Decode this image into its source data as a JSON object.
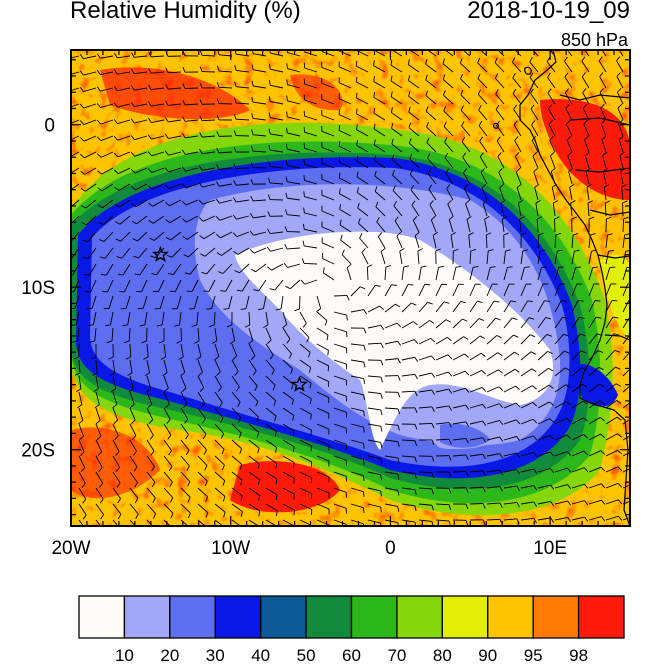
{
  "header": {
    "title": "Relative Humidity (%)",
    "datetime": "2018-10-19_09",
    "level": "850 hPa"
  },
  "map": {
    "lon_range": [
      -20,
      15
    ],
    "lat_range": [
      -24.7,
      4.6
    ],
    "lon_ticks": [
      {
        "value": -20,
        "label": "20W"
      },
      {
        "value": -10,
        "label": "10W"
      },
      {
        "value": 0,
        "label": "0"
      },
      {
        "value": 10,
        "label": "10E"
      }
    ],
    "lat_ticks": [
      {
        "value": 0,
        "label": "0"
      },
      {
        "value": -10,
        "label": "10S"
      },
      {
        "value": -20,
        "label": "20S"
      }
    ],
    "markers": [
      {
        "lon": -14.4,
        "lat": -8.0,
        "symbol": "star"
      },
      {
        "lon": -5.7,
        "lat": -16.0,
        "symbol": "star"
      }
    ]
  },
  "colorbar": {
    "colors": [
      "#fdfcf9",
      "#a2a7f7",
      "#5e6ef0",
      "#0a18e6",
      "#0b5a96",
      "#118a3c",
      "#2cb81a",
      "#86d60c",
      "#e2ee05",
      "#ffc400",
      "#ff7a00",
      "#ff1a0a"
    ],
    "labels": [
      "10",
      "20",
      "30",
      "40",
      "50",
      "60",
      "70",
      "80",
      "90",
      "95",
      "98"
    ]
  }
}
